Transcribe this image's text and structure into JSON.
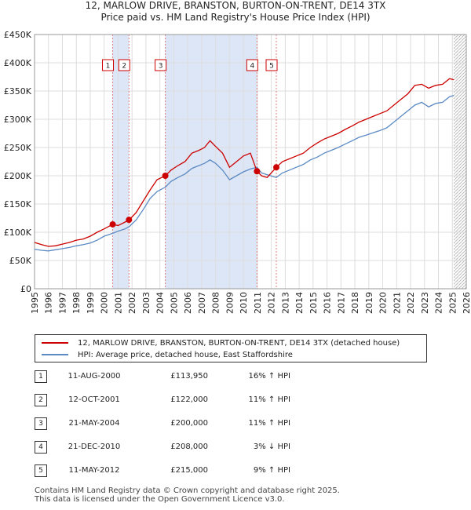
{
  "header": {
    "title_line1": "12, MARLOW DRIVE, BRANSTON, BURTON-ON-TRENT, DE14 3TX",
    "title_line2": "Price paid vs. HM Land Registry's House Price Index (HPI)"
  },
  "colors": {
    "property": "#cc0000",
    "hpi": "#5b8ac4",
    "sale_marker": "#cc0000",
    "sale_band": "#dde6f6"
  },
  "chart_data": {
    "type": "line",
    "title": "Price paid vs. HM Land Registry's House Price Index (HPI)",
    "xlim": [
      1995,
      2026
    ],
    "ylim": [
      0,
      450000
    ],
    "y_ticks": [
      0,
      50000,
      100000,
      150000,
      200000,
      250000,
      300000,
      350000,
      400000,
      450000
    ],
    "y_tick_labels": [
      "£0",
      "£50K",
      "£100K",
      "£150K",
      "£200K",
      "£250K",
      "£300K",
      "£350K",
      "£400K",
      "£450K"
    ],
    "x_ticks": [
      1995,
      1996,
      1997,
      1998,
      1999,
      2000,
      2001,
      2002,
      2003,
      2004,
      2005,
      2006,
      2007,
      2008,
      2009,
      2010,
      2011,
      2012,
      2013,
      2014,
      2015,
      2016,
      2017,
      2018,
      2019,
      2020,
      2021,
      2022,
      2023,
      2024,
      2025,
      2026
    ],
    "grid": true,
    "series": [
      {
        "name": "12, MARLOW DRIVE, BRANSTON, BURTON-ON-TRENT, DE14 3TX (detached house)",
        "color": "#cc0000",
        "points": [
          [
            1995,
            82000
          ],
          [
            1995.5,
            78000
          ],
          [
            1996,
            75000
          ],
          [
            1996.5,
            76000
          ],
          [
            1997,
            79000
          ],
          [
            1997.5,
            82000
          ],
          [
            1998,
            86000
          ],
          [
            1998.5,
            88000
          ],
          [
            1999,
            93000
          ],
          [
            1999.5,
            100000
          ],
          [
            2000,
            106000
          ],
          [
            2000.6,
            113950
          ],
          [
            2001,
            112000
          ],
          [
            2001.5,
            118000
          ],
          [
            2001.8,
            122000
          ],
          [
            2002.3,
            135000
          ],
          [
            2002.8,
            155000
          ],
          [
            2003.3,
            175000
          ],
          [
            2003.8,
            193000
          ],
          [
            2004.4,
            200000
          ],
          [
            2004.8,
            210000
          ],
          [
            2005.3,
            218000
          ],
          [
            2005.8,
            225000
          ],
          [
            2006.3,
            240000
          ],
          [
            2006.8,
            245000
          ],
          [
            2007.2,
            250000
          ],
          [
            2007.6,
            262000
          ],
          [
            2008,
            252000
          ],
          [
            2008.5,
            240000
          ],
          [
            2009,
            215000
          ],
          [
            2009.5,
            225000
          ],
          [
            2010,
            235000
          ],
          [
            2010.5,
            240000
          ],
          [
            2010.97,
            208000
          ],
          [
            2011.3,
            200000
          ],
          [
            2011.7,
            197000
          ],
          [
            2012.36,
            215000
          ],
          [
            2012.8,
            225000
          ],
          [
            2013.3,
            230000
          ],
          [
            2013.8,
            235000
          ],
          [
            2014.3,
            240000
          ],
          [
            2014.8,
            250000
          ],
          [
            2015.3,
            258000
          ],
          [
            2015.8,
            265000
          ],
          [
            2016.3,
            270000
          ],
          [
            2016.8,
            275000
          ],
          [
            2017.3,
            282000
          ],
          [
            2017.8,
            288000
          ],
          [
            2018.3,
            295000
          ],
          [
            2018.8,
            300000
          ],
          [
            2019.3,
            305000
          ],
          [
            2019.8,
            310000
          ],
          [
            2020.3,
            315000
          ],
          [
            2020.8,
            325000
          ],
          [
            2021.3,
            335000
          ],
          [
            2021.8,
            345000
          ],
          [
            2022.3,
            360000
          ],
          [
            2022.8,
            362000
          ],
          [
            2023.3,
            355000
          ],
          [
            2023.8,
            360000
          ],
          [
            2024.3,
            362000
          ],
          [
            2024.8,
            372000
          ],
          [
            2025.1,
            370000
          ]
        ]
      },
      {
        "name": "HPI: Average price, detached house, East Staffordshire",
        "color": "#5b8ac4",
        "points": [
          [
            1995,
            70000
          ],
          [
            1995.5,
            68000
          ],
          [
            1996,
            67000
          ],
          [
            1996.5,
            69000
          ],
          [
            1997,
            71000
          ],
          [
            1997.5,
            73000
          ],
          [
            1998,
            76000
          ],
          [
            1998.5,
            78000
          ],
          [
            1999,
            81000
          ],
          [
            1999.5,
            86000
          ],
          [
            2000,
            93000
          ],
          [
            2000.6,
            98000
          ],
          [
            2001,
            102000
          ],
          [
            2001.5,
            106000
          ],
          [
            2001.8,
            110000
          ],
          [
            2002.3,
            122000
          ],
          [
            2002.8,
            140000
          ],
          [
            2003.3,
            160000
          ],
          [
            2003.8,
            172000
          ],
          [
            2004.4,
            180000
          ],
          [
            2004.8,
            190000
          ],
          [
            2005.3,
            197000
          ],
          [
            2005.8,
            203000
          ],
          [
            2006.3,
            213000
          ],
          [
            2006.8,
            218000
          ],
          [
            2007.2,
            222000
          ],
          [
            2007.6,
            228000
          ],
          [
            2008,
            222000
          ],
          [
            2008.5,
            210000
          ],
          [
            2009,
            193000
          ],
          [
            2009.5,
            200000
          ],
          [
            2010,
            207000
          ],
          [
            2010.5,
            212000
          ],
          [
            2010.97,
            215000
          ],
          [
            2011.3,
            205000
          ],
          [
            2011.7,
            202000
          ],
          [
            2012.36,
            197000
          ],
          [
            2012.8,
            205000
          ],
          [
            2013.3,
            210000
          ],
          [
            2013.8,
            215000
          ],
          [
            2014.3,
            220000
          ],
          [
            2014.8,
            228000
          ],
          [
            2015.3,
            233000
          ],
          [
            2015.8,
            240000
          ],
          [
            2016.3,
            245000
          ],
          [
            2016.8,
            250000
          ],
          [
            2017.3,
            256000
          ],
          [
            2017.8,
            262000
          ],
          [
            2018.3,
            268000
          ],
          [
            2018.8,
            272000
          ],
          [
            2019.3,
            276000
          ],
          [
            2019.8,
            280000
          ],
          [
            2020.3,
            285000
          ],
          [
            2020.8,
            295000
          ],
          [
            2021.3,
            305000
          ],
          [
            2021.8,
            315000
          ],
          [
            2022.3,
            325000
          ],
          [
            2022.8,
            330000
          ],
          [
            2023.3,
            322000
          ],
          [
            2023.8,
            328000
          ],
          [
            2024.3,
            330000
          ],
          [
            2024.8,
            340000
          ],
          [
            2025.1,
            342000
          ]
        ]
      }
    ],
    "sale_markers": [
      {
        "label": "1",
        "x": 2000.61,
        "y": 113950
      },
      {
        "label": "2",
        "x": 2001.78,
        "y": 122000
      },
      {
        "label": "3",
        "x": 2004.39,
        "y": 200000
      },
      {
        "label": "4",
        "x": 2010.97,
        "y": 208000
      },
      {
        "label": "5",
        "x": 2012.36,
        "y": 215000
      }
    ],
    "shaded_periods": [
      [
        2000.61,
        2001.78
      ],
      [
        2004.39,
        2010.97
      ],
      [
        2012.36,
        2012.36
      ]
    ]
  },
  "legend": {
    "property_label": "12, MARLOW DRIVE, BRANSTON, BURTON-ON-TRENT, DE14 3TX (detached house)",
    "hpi_label": "HPI: Average price, detached house, East Staffordshire"
  },
  "sales": [
    {
      "num": "1",
      "date": "11-AUG-2000",
      "price": "£113,950",
      "delta": "16% ↑ HPI"
    },
    {
      "num": "2",
      "date": "12-OCT-2001",
      "price": "£122,000",
      "delta": "11% ↑ HPI"
    },
    {
      "num": "3",
      "date": "21-MAY-2004",
      "price": "£200,000",
      "delta": "11% ↑ HPI"
    },
    {
      "num": "4",
      "date": "21-DEC-2010",
      "price": "£208,000",
      "delta": "3% ↓ HPI"
    },
    {
      "num": "5",
      "date": "11-MAY-2012",
      "price": "£215,000",
      "delta": "9% ↑ HPI"
    }
  ],
  "footer": {
    "line1": "Contains HM Land Registry data © Crown copyright and database right 2025.",
    "line2": "This data is licensed under the Open Government Licence v3.0."
  }
}
